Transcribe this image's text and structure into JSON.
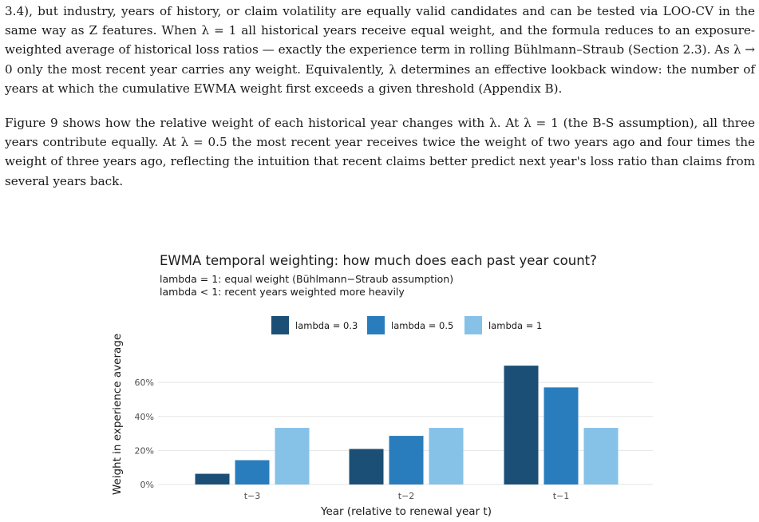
{
  "paper": {
    "paragraph1": "3.4), but industry, years of history, or claim volatility are equally valid candidates and can be tested via LOO-CV in the same way as Z features. When λ = 1 all historical years receive equal weight, and the formula reduces to an exposure-weighted average of historical loss ratios — exactly the experience term in rolling Bühlmann–Straub (Section 2.3). As λ → 0 only the most recent year carries any weight. Equivalently, λ determines an effective lookback window: the number of years at which the cumulative EWMA weight first exceeds a given threshold (Appendix B).",
    "paragraph2": "Figure 9 shows how the relative weight of each historical year changes with λ. At λ = 1 (the B-S assumption), all three years contribute equally. At λ = 0.5 the most recent year receives twice the weight of two years ago and four times the weight of three years ago, reflecting the intuition that recent claims better predict next year's loss ratio than claims from several years back."
  },
  "chart_data": {
    "type": "bar",
    "title": "EWMA temporal weighting: how much does each past year count?",
    "subtitle_lines": [
      "lambda = 1: equal weight (Bühlmann−Straub assumption)",
      "lambda < 1: recent years weighted more heavily"
    ],
    "xlabel": "Year (relative to renewal year t)",
    "ylabel": "Weight in experience average",
    "categories": [
      "t−3",
      "t−2",
      "t−1"
    ],
    "series": [
      {
        "name": "lambda = 0.3",
        "color": "#1b4f76",
        "values": [
          0.063,
          0.209,
          0.699
        ]
      },
      {
        "name": "lambda = 0.5",
        "color": "#2a7dbc",
        "values": [
          0.143,
          0.286,
          0.571
        ]
      },
      {
        "name": "lambda = 1",
        "color": "#86c1e8",
        "values": [
          0.333,
          0.333,
          0.333
        ]
      }
    ],
    "yticks": [
      0,
      0.2,
      0.4,
      0.6
    ],
    "ytick_labels": [
      "0%",
      "20%",
      "40%",
      "60%"
    ],
    "ylim": [
      0,
      0.76
    ],
    "legend_position": "top",
    "grid": true
  }
}
